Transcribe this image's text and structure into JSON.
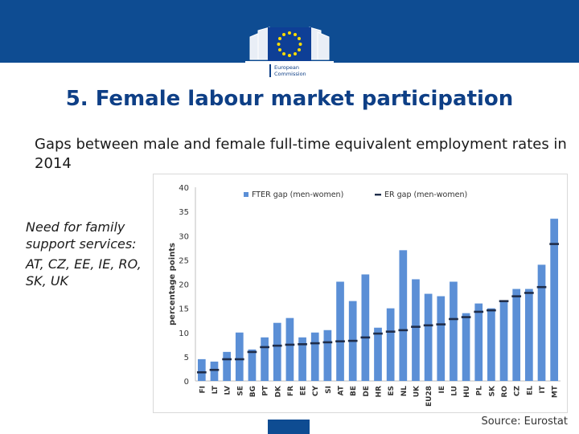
{
  "header": {
    "logo_text": "European Commission",
    "band_color": "#0e4c92"
  },
  "title": "5. Female labour market participation",
  "subtitle": "Gaps between male and female full-time equivalent employment rates in 2014",
  "side_note": {
    "heading": "Need for family support services:",
    "countries": "AT, CZ, EE, IE, RO, SK, UK"
  },
  "source": "Source: Eurostat",
  "chart_data": {
    "type": "bar",
    "ylabel": "percentage points",
    "ylim": [
      0,
      40
    ],
    "yticks": [
      0,
      5,
      10,
      15,
      20,
      25,
      30,
      35,
      40
    ],
    "legend_position": "top",
    "grid": false,
    "categories": [
      "FI",
      "LT",
      "LV",
      "SE",
      "BG",
      "PT",
      "DK",
      "FR",
      "EE",
      "CY",
      "SI",
      "AT",
      "BE",
      "DE",
      "HR",
      "ES",
      "NL",
      "UK",
      "EU28",
      "IE",
      "LU",
      "HU",
      "PL",
      "SK",
      "RO",
      "CZ",
      "EL",
      "IT",
      "MT"
    ],
    "series": [
      {
        "name": "FTER gap (men-women)",
        "style": "bar",
        "color": "#5b8fd6",
        "values": [
          4.5,
          4,
          6,
          10,
          6.5,
          9,
          12,
          13,
          9,
          10,
          10.5,
          20.5,
          16.5,
          22,
          11,
          15,
          27,
          21,
          18,
          17.5,
          20.5,
          14,
          16,
          15,
          16.5,
          19,
          19,
          24,
          33.5
        ]
      },
      {
        "name": "ER gap (men-women)",
        "style": "marker",
        "color": "#1f2d4a",
        "values": [
          1.8,
          2.3,
          4.5,
          4.5,
          6,
          7,
          7.3,
          7.5,
          7.6,
          7.8,
          8,
          8.2,
          8.3,
          9,
          9.8,
          10.2,
          10.5,
          11.2,
          11.5,
          11.7,
          12.8,
          13.2,
          14.3,
          14.6,
          16.5,
          17.5,
          18.2,
          19.4,
          28.3
        ]
      }
    ]
  }
}
